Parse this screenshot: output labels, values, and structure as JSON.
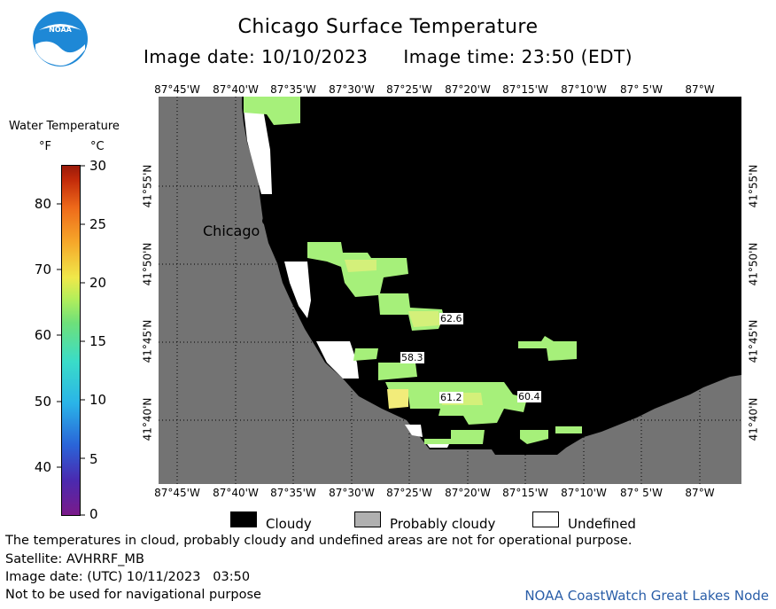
{
  "header": {
    "title": "Chicago Surface Temperature",
    "image_date_label": "Image date: 10/10/2023",
    "image_time_label": "Image time: 23:50 (EDT)",
    "logo_text": "NOAA"
  },
  "scale": {
    "title": "Water Temperature",
    "unit_f": "°F",
    "unit_c": "°C",
    "f_ticks": [
      "80",
      "70",
      "60",
      "50",
      "40"
    ],
    "c_ticks": [
      "30",
      "25",
      "20",
      "15",
      "10",
      "5",
      "0"
    ]
  },
  "map": {
    "lon_labels": [
      "87°45'W",
      "87°40'W",
      "87°35'W",
      "87°30'W",
      "87°25'W",
      "87°20'W",
      "87°15'W",
      "87°10'W",
      "87° 5'W",
      "87°W"
    ],
    "lat_labels": [
      "41°55'N",
      "41°50'N",
      "41°45'N",
      "41°40'N"
    ],
    "city_label": "Chicago",
    "temp_labels": [
      "62.6",
      "58.3",
      "61.2",
      "60.4"
    ],
    "colors": {
      "land": "#737373",
      "cloudy": "#000000",
      "undefined": "#ffffff",
      "water_green": "#a6f07a",
      "water_yellowgreen": "#d4f07a",
      "water_yellow": "#f2ec7a"
    }
  },
  "legend": {
    "cloudy": "Cloudy",
    "probably_cloudy": "Probably cloudy",
    "undefined": "Undefined"
  },
  "footer": {
    "note": "The temperatures in cloud, probably cloudy and undefined areas are not for operational purpose.",
    "satellite": "Satellite: AVHRRF_MB",
    "image_date_utc": "Image date: (UTC) 10/11/2023   03:50",
    "nav_warning": "Not to be used for navigational purpose",
    "node": "NOAA CoastWatch Great Lakes Node"
  }
}
